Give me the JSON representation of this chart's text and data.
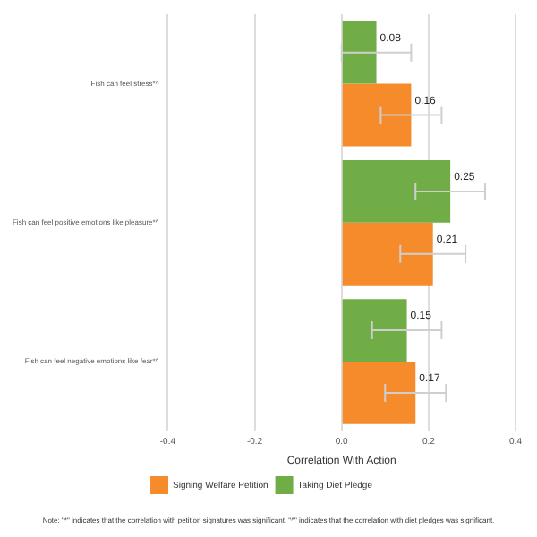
{
  "chart_data": {
    "type": "bar",
    "orientation": "horizontal",
    "xlabel": "Correlation With Action",
    "categories": [
      "Fish can feel stress*^",
      "Fish can feel positive emotions like pleasure*^",
      "Fish can feel negative emotions like fear*^"
    ],
    "series": [
      {
        "name": "Taking Diet Pledge",
        "color": "#70ad47",
        "values": [
          0.08,
          0.25,
          0.15
        ],
        "errors": [
          0.08,
          0.08,
          0.08
        ]
      },
      {
        "name": "Signing Welfare Petition",
        "color": "#f58b2a",
        "values": [
          0.16,
          0.21,
          0.17
        ],
        "errors": [
          0.07,
          0.075,
          0.07
        ]
      }
    ],
    "xlim": [
      -0.4,
      0.4
    ],
    "xticks": [
      -0.4,
      -0.2,
      {
        "value": 0,
        "label": "0.0"
      },
      0.2,
      0.4
    ],
    "grid": "x",
    "legend": "bottom",
    "data_labels": true,
    "annotations": [
      "Note: \"*\" indicates that the correlation with petition signatures was significant. \"^\" indicates that the correlation with diet pledges was significant."
    ]
  }
}
